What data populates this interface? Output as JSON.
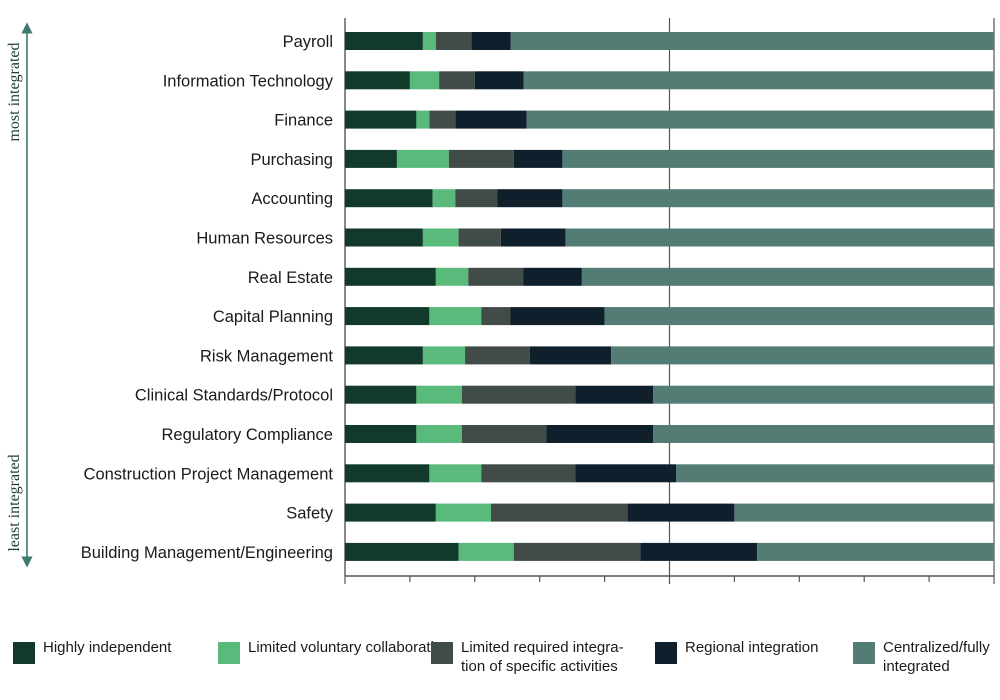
{
  "chart_data": {
    "type": "bar",
    "orientation": "horizontal",
    "stacked": true,
    "percent_stacked": true,
    "categories": [
      "Payroll",
      "Information Technology",
      "Finance",
      "Purchasing",
      "Accounting",
      "Human Resources",
      "Real Estate",
      "Capital Planning",
      "Risk Management",
      "Clinical Standards/Protocol",
      "Regulatory Compliance",
      "Construction Project Management",
      "Safety",
      "Building Management/Engineering"
    ],
    "series": [
      {
        "name": "Highly independent",
        "color": "#113a2a",
        "values": [
          12,
          10,
          11,
          8,
          13.5,
          12,
          14,
          13,
          12,
          11,
          11,
          13,
          14,
          17.5
        ]
      },
      {
        "name": "Limited voluntary collaboration",
        "color": "#5aba7c",
        "values": [
          2,
          4.5,
          2,
          8,
          3.5,
          5.5,
          5,
          8,
          6.5,
          7,
          7,
          8,
          8.5,
          8.5
        ]
      },
      {
        "name": "Limited required integra-\ntion of specific activities",
        "color": "#414b48",
        "values": [
          5.5,
          5.5,
          4,
          10,
          6.5,
          6.5,
          8.5,
          4.5,
          10,
          17.5,
          13,
          14.5,
          21,
          19.5
        ]
      },
      {
        "name": "Regional integration",
        "color": "#0f1f2b",
        "values": [
          6,
          7.5,
          11,
          7.5,
          10,
          10,
          9,
          14.5,
          12.5,
          12,
          16.5,
          15.5,
          16.5,
          18
        ]
      },
      {
        "name": "Centralized/fully\nintegrated",
        "color": "#527c74",
        "values": [
          74.5,
          72.5,
          72,
          66.5,
          66.5,
          66,
          63.5,
          60,
          59,
          52.5,
          52.5,
          49,
          40,
          36.5
        ]
      }
    ],
    "xlim": [
      0,
      100
    ],
    "major_gridlines": [
      50
    ],
    "legend_position": "bottom",
    "side_annotations": {
      "top": "most integrated",
      "bottom": "least integrated"
    }
  }
}
